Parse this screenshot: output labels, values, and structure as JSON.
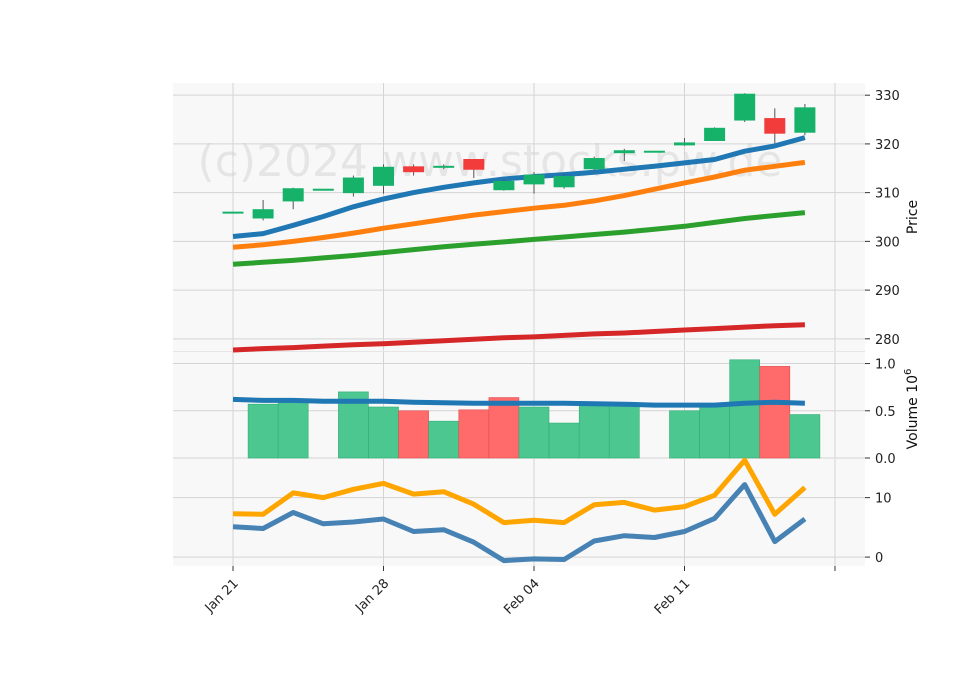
{
  "watermark": "(c)2024 www.stocks.pw.de",
  "colors": {
    "up": "#17b26a",
    "down": "#f23c3c",
    "vol_up": "#4cc790",
    "vol_down": "#ff6b6b",
    "ma_blue": "#1f77b4",
    "ma_orange": "#ff7f0e",
    "ma_green": "#2ca02c",
    "ma_red": "#d62728",
    "vol_ma": "#1f77b4",
    "osc_orange": "#ffa500",
    "osc_blue": "#4682b4",
    "panel_bg": "#f8f8f8",
    "grid": "#d4d4d4"
  },
  "chart_data": {
    "type": "candlestick",
    "x_tick_labels": [
      "Jan 21",
      "Jan 28",
      "Feb 04",
      "Feb 11"
    ],
    "x_tick_index": [
      0,
      5,
      10,
      15
    ],
    "price_panel": {
      "ylabel": "Price",
      "ylim": [
        277.5,
        332.5
      ],
      "yticks": [
        280,
        290,
        300,
        310,
        320,
        330
      ],
      "candles": [
        {
          "i": 0,
          "o": 306.0,
          "h": 306.0,
          "l": 306.0,
          "c": 306.0
        },
        {
          "i": 1,
          "o": 304.8,
          "h": 308.5,
          "l": 304.3,
          "c": 306.5
        },
        {
          "i": 2,
          "o": 308.3,
          "h": 311.0,
          "l": 306.6,
          "c": 310.8
        },
        {
          "i": 3,
          "o": 310.7,
          "h": 310.7,
          "l": 310.7,
          "c": 310.7
        },
        {
          "i": 4,
          "o": 310.0,
          "h": 313.5,
          "l": 309.2,
          "c": 313.0
        },
        {
          "i": 5,
          "o": 311.5,
          "h": 315.8,
          "l": 309.8,
          "c": 315.2
        },
        {
          "i": 6,
          "o": 315.3,
          "h": 315.8,
          "l": 313.5,
          "c": 314.3
        },
        {
          "i": 7,
          "o": 315.2,
          "h": 315.8,
          "l": 314.8,
          "c": 315.4
        },
        {
          "i": 8,
          "o": 316.8,
          "h": 316.8,
          "l": 313.0,
          "c": 314.8
        },
        {
          "i": 9,
          "o": 310.6,
          "h": 312.8,
          "l": 310.4,
          "c": 312.3
        },
        {
          "i": 10,
          "o": 311.8,
          "h": 314.2,
          "l": 309.8,
          "c": 313.6
        },
        {
          "i": 11,
          "o": 311.2,
          "h": 313.8,
          "l": 310.8,
          "c": 313.3
        },
        {
          "i": 12,
          "o": 314.9,
          "h": 317.4,
          "l": 314.5,
          "c": 317.0
        },
        {
          "i": 13,
          "o": 318.2,
          "h": 319.0,
          "l": 316.5,
          "c": 318.6
        },
        {
          "i": 14,
          "o": 318.5,
          "h": 318.5,
          "l": 318.5,
          "c": 318.5
        },
        {
          "i": 15,
          "o": 319.8,
          "h": 321.2,
          "l": 319.6,
          "c": 320.2
        },
        {
          "i": 16,
          "o": 320.7,
          "h": 323.4,
          "l": 320.6,
          "c": 323.2
        },
        {
          "i": 17,
          "o": 324.9,
          "h": 330.4,
          "l": 324.5,
          "c": 330.2
        },
        {
          "i": 18,
          "o": 325.2,
          "h": 327.3,
          "l": 320.1,
          "c": 322.2
        },
        {
          "i": 19,
          "o": 322.4,
          "h": 328.2,
          "l": 321.8,
          "c": 327.4
        }
      ],
      "ma_series": [
        {
          "color_key": "ma_blue",
          "values": [
            301.0,
            301.6,
            303.3,
            305.1,
            307.1,
            308.7,
            310.0,
            311.1,
            312.0,
            312.8,
            313.3,
            313.7,
            314.2,
            314.8,
            315.4,
            316.1,
            316.8,
            318.5,
            319.6,
            321.3
          ]
        },
        {
          "color_key": "ma_orange",
          "values": [
            298.8,
            299.3,
            300.0,
            300.8,
            301.7,
            302.7,
            303.6,
            304.5,
            305.4,
            306.1,
            306.8,
            307.4,
            308.3,
            309.4,
            310.7,
            312.0,
            313.2,
            314.6,
            315.4,
            316.2
          ]
        },
        {
          "color_key": "ma_green",
          "values": [
            295.3,
            295.7,
            296.1,
            296.6,
            297.1,
            297.7,
            298.3,
            298.9,
            299.4,
            299.9,
            300.4,
            300.9,
            301.4,
            301.9,
            302.5,
            303.1,
            303.9,
            304.7,
            305.3,
            305.9
          ]
        },
        {
          "color_key": "ma_red",
          "values": [
            277.7,
            278.0,
            278.2,
            278.5,
            278.8,
            279.0,
            279.3,
            279.6,
            279.9,
            280.2,
            280.4,
            280.7,
            281.0,
            281.2,
            281.5,
            281.8,
            282.1,
            282.4,
            282.7,
            282.9
          ]
        }
      ]
    },
    "volume_panel": {
      "ylabel": "Volume  10",
      "ylabel_exponent": "6",
      "ylim": [
        0,
        1.0
      ],
      "yticks": [
        0.0,
        0.5,
        1.0
      ],
      "ytick_labels": [
        "0.0",
        "0.5",
        "1.0"
      ],
      "bars": [
        {
          "i": 1,
          "v": 0.57,
          "dir": "up"
        },
        {
          "i": 2,
          "v": 0.59,
          "dir": "up"
        },
        {
          "i": 4,
          "v": 0.7,
          "dir": "up"
        },
        {
          "i": 5,
          "v": 0.54,
          "dir": "up"
        },
        {
          "i": 6,
          "v": 0.5,
          "dir": "down"
        },
        {
          "i": 7,
          "v": 0.39,
          "dir": "up"
        },
        {
          "i": 8,
          "v": 0.51,
          "dir": "down"
        },
        {
          "i": 9,
          "v": 0.64,
          "dir": "down"
        },
        {
          "i": 10,
          "v": 0.54,
          "dir": "up"
        },
        {
          "i": 11,
          "v": 0.37,
          "dir": "up"
        },
        {
          "i": 12,
          "v": 0.56,
          "dir": "up"
        },
        {
          "i": 13,
          "v": 0.55,
          "dir": "up"
        },
        {
          "i": 15,
          "v": 0.5,
          "dir": "up"
        },
        {
          "i": 16,
          "v": 0.56,
          "dir": "up"
        },
        {
          "i": 17,
          "v": 1.04,
          "dir": "up"
        },
        {
          "i": 18,
          "v": 0.97,
          "dir": "down"
        },
        {
          "i": 19,
          "v": 0.46,
          "dir": "up"
        }
      ],
      "ma_values": [
        0.62,
        0.61,
        0.61,
        0.6,
        0.6,
        0.6,
        0.59,
        0.585,
        0.58,
        0.58,
        0.58,
        0.58,
        0.575,
        0.57,
        0.56,
        0.56,
        0.56,
        0.58,
        0.59,
        0.58
      ]
    },
    "oscillator_panel": {
      "ylim": [
        -1.5,
        16.5
      ],
      "yticks": [
        0,
        10
      ],
      "ytick_labels": [
        "0",
        "10"
      ],
      "series": [
        {
          "color_key": "osc_orange",
          "values": [
            7.3,
            7.2,
            10.8,
            10.0,
            11.4,
            12.4,
            10.6,
            11.0,
            8.9,
            5.8,
            6.2,
            5.8,
            8.8,
            9.2,
            7.9,
            8.5,
            10.4,
            16.3,
            7.2,
            11.7
          ]
        },
        {
          "color_key": "osc_blue",
          "values": [
            5.1,
            4.8,
            7.5,
            5.6,
            5.9,
            6.4,
            4.3,
            4.6,
            2.5,
            -0.6,
            -0.3,
            -0.4,
            2.7,
            3.6,
            3.3,
            4.3,
            6.5,
            12.2,
            2.6,
            6.4
          ]
        }
      ]
    }
  }
}
